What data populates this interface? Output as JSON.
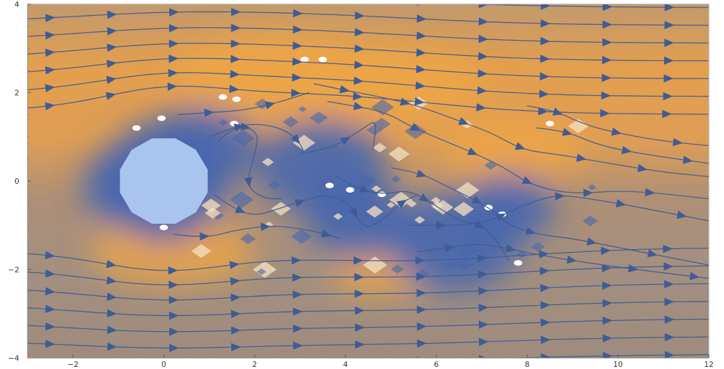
{
  "chart_data": {
    "type": "streamplot",
    "title": "",
    "xlabel": "",
    "ylabel": "",
    "xlim": [
      -3,
      12
    ],
    "ylim": [
      -4,
      4
    ],
    "x_ticks": [
      -2,
      0,
      2,
      4,
      6,
      8,
      10,
      12
    ],
    "y_ticks": [
      -4,
      -2,
      0,
      2,
      4
    ],
    "x_tick_labels": [
      "−2",
      "0",
      "2",
      "4",
      "6",
      "8",
      "10",
      "12"
    ],
    "y_tick_labels": [
      "−4",
      "−2",
      "0",
      "2",
      "4"
    ],
    "obstacle": {
      "shape": "dodecagon",
      "center": [
        0,
        0
      ],
      "radius": 1.0
    },
    "background": {
      "description_colormap": [
        "#f2b25a",
        "#a98f7a",
        "#3f5fa8"
      ],
      "high_speed_color": "#efa646",
      "neutral_color": "#a7917e",
      "low_speed_color": "#4566b0"
    },
    "stream_color": "#3e5c95",
    "obstacle_color": "#a9c4ee",
    "wake_regions": [
      {
        "x": 0.8,
        "y": 0.7,
        "strength": 0.9
      },
      {
        "x": 3.5,
        "y": 0.3,
        "strength": 1.0
      },
      {
        "x": 6.4,
        "y": -1.4,
        "strength": 1.0
      },
      {
        "x": 4.3,
        "y": -0.9,
        "strength": 0.8
      },
      {
        "x": 7.6,
        "y": -0.6,
        "strength": 0.7
      },
      {
        "x": -0.5,
        "y": -0.1,
        "strength": 0.9
      }
    ],
    "fast_regions": [
      {
        "x": 2.5,
        "y": 2.4,
        "strength": 1.0
      },
      {
        "x": 5.0,
        "y": 2.2,
        "strength": 0.9
      },
      {
        "x": 7.7,
        "y": 0.7,
        "strength": 0.7
      },
      {
        "x": 0.2,
        "y": -1.6,
        "strength": 0.8
      },
      {
        "x": 4.8,
        "y": -2.1,
        "strength": 0.5
      }
    ],
    "free_streamlines_y": [
      -3.9,
      -3.5,
      -3.1,
      -2.7,
      -2.3,
      -1.9,
      -1.5,
      1.5,
      1.9,
      2.3,
      2.7,
      3.1,
      3.5,
      3.9
    ],
    "wake_streamlines": [
      [
        [
          1.0,
          1.0
        ],
        [
          1.6,
          1.25
        ],
        [
          2.2,
          1.3
        ],
        [
          2.8,
          1.1
        ],
        [
          3.1,
          0.7
        ],
        [
          3.0,
          0.6
        ],
        [
          3.4,
          0.7
        ],
        [
          3.8,
          0.8
        ],
        [
          4.4,
          1.2
        ],
        [
          4.7,
          1.4
        ],
        [
          4.6,
          0.7
        ]
      ],
      [
        [
          1.2,
          0.9
        ],
        [
          1.6,
          1.3
        ],
        [
          2.1,
          1.1
        ],
        [
          2.0,
          0.6
        ],
        [
          1.8,
          -0.1
        ],
        [
          2.2,
          -0.4
        ],
        [
          2.6,
          -0.4
        ]
      ],
      [
        [
          1.1,
          -0.3
        ],
        [
          1.5,
          -0.6
        ],
        [
          2.0,
          -0.8
        ],
        [
          2.6,
          -0.6
        ],
        [
          3.2,
          -0.4
        ],
        [
          3.6,
          -0.3
        ],
        [
          4.1,
          -0.5
        ],
        [
          4.4,
          -1.1
        ],
        [
          4.8,
          -0.9
        ],
        [
          5.2,
          -0.5
        ],
        [
          5.6,
          -0.3
        ]
      ],
      [
        [
          3.8,
          0.1
        ],
        [
          4.3,
          -0.2
        ],
        [
          4.9,
          -0.3
        ],
        [
          5.4,
          -0.2
        ],
        [
          5.9,
          -0.5
        ],
        [
          6.5,
          -0.9
        ],
        [
          7.0,
          -1.0
        ],
        [
          7.3,
          -1.3
        ],
        [
          7.6,
          -1.8
        ]
      ],
      [
        [
          5.0,
          0.3
        ],
        [
          5.6,
          0.2
        ],
        [
          6.2,
          -0.1
        ],
        [
          6.8,
          -0.4
        ],
        [
          7.3,
          -0.7
        ],
        [
          7.6,
          -1.0
        ],
        [
          8.2,
          -1.2
        ],
        [
          9.0,
          -1.3
        ],
        [
          10.0,
          -1.5
        ],
        [
          11.0,
          -1.7
        ],
        [
          12.0,
          -1.9
        ]
      ],
      [
        [
          5.4,
          -1.0
        ],
        [
          6.0,
          -1.0
        ],
        [
          6.6,
          -1.0
        ],
        [
          7.2,
          -0.9
        ],
        [
          7.8,
          -0.6
        ],
        [
          8.6,
          -0.3
        ],
        [
          9.4,
          -0.4
        ],
        [
          10.5,
          -0.6
        ],
        [
          12.0,
          -0.9
        ]
      ],
      [
        [
          3.6,
          1.8
        ],
        [
          4.2,
          1.7
        ],
        [
          4.9,
          1.55
        ],
        [
          5.5,
          1.2
        ],
        [
          6.2,
          0.9
        ],
        [
          6.9,
          0.6
        ],
        [
          7.5,
          0.3
        ],
        [
          8.1,
          -0.1
        ],
        [
          9.0,
          -0.3
        ],
        [
          10.2,
          -0.2
        ],
        [
          12.0,
          -0.4
        ]
      ],
      [
        [
          3.3,
          2.2
        ],
        [
          4.0,
          2.05
        ],
        [
          4.8,
          1.9
        ],
        [
          5.6,
          1.7
        ],
        [
          6.4,
          1.4
        ],
        [
          7.2,
          1.1
        ],
        [
          7.9,
          0.7
        ],
        [
          8.7,
          0.6
        ],
        [
          9.8,
          0.4
        ],
        [
          11.0,
          0.2
        ],
        [
          12.0,
          0.1
        ]
      ],
      [
        [
          0.3,
          1.5
        ],
        [
          1.0,
          1.55
        ],
        [
          1.8,
          1.6
        ],
        [
          2.6,
          1.8
        ],
        [
          3.2,
          2.0
        ]
      ],
      [
        [
          8.0,
          1.7
        ],
        [
          8.6,
          1.6
        ],
        [
          9.2,
          1.3
        ],
        [
          9.9,
          1.1
        ],
        [
          11.0,
          0.9
        ],
        [
          12.0,
          0.8
        ]
      ],
      [
        [
          8.2,
          1.2
        ],
        [
          8.8,
          1.15
        ],
        [
          9.6,
          0.8
        ],
        [
          10.6,
          0.6
        ],
        [
          12.0,
          0.4
        ]
      ],
      [
        [
          0.2,
          -1.2
        ],
        [
          0.9,
          -1.3
        ],
        [
          1.6,
          -1.1
        ],
        [
          2.4,
          -1.0
        ],
        [
          3.2,
          -1.1
        ],
        [
          3.9,
          -1.3
        ]
      ],
      [
        [
          5.6,
          -1.6
        ],
        [
          6.3,
          -1.5
        ],
        [
          7.0,
          -1.4
        ],
        [
          7.9,
          -1.6
        ],
        [
          9.0,
          -1.8
        ],
        [
          10.4,
          -2.0
        ],
        [
          12.0,
          -2.2
        ]
      ]
    ]
  }
}
